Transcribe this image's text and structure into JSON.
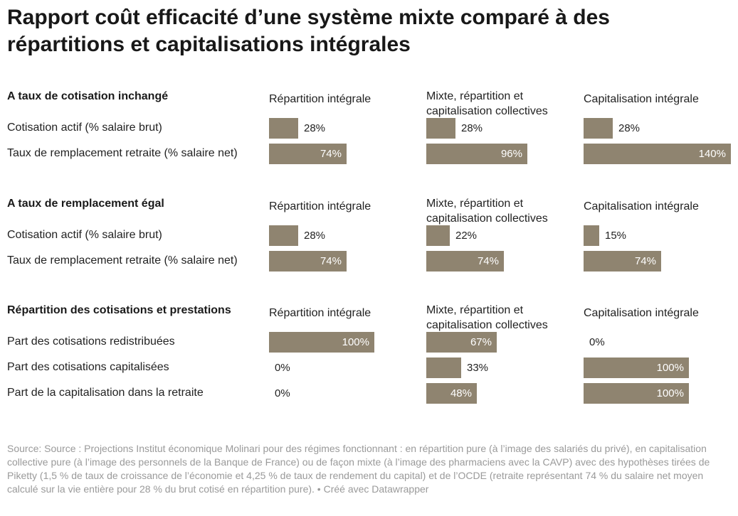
{
  "title": "Rapport coût efficacité d’une système mixte comparé à des répartitions et capitalisations intégrales",
  "accent_color": "#8f8470",
  "chart_data": {
    "type": "bar",
    "max_value": 140,
    "columns": [
      "Répartition intégrale",
      "Mixte, répartition et capitalisation collectives",
      "Capitalisation intégrale"
    ],
    "sections": [
      {
        "title": "A taux de cotisation inchangé",
        "rows": [
          {
            "label": "Cotisation actif (% salaire brut)",
            "values": [
              28,
              28,
              28
            ],
            "labels": [
              "28%",
              "28%",
              "28%"
            ]
          },
          {
            "label": "Taux de remplacement retraite (% salaire net)",
            "values": [
              74,
              96,
              140
            ],
            "labels": [
              "74%",
              "96%",
              "140%"
            ]
          }
        ]
      },
      {
        "title": "A taux de remplacement égal",
        "rows": [
          {
            "label": "Cotisation actif (% salaire brut)",
            "values": [
              28,
              22,
              15
            ],
            "labels": [
              "28%",
              "22%",
              "15%"
            ]
          },
          {
            "label": "Taux de remplacement retraite (% salaire net)",
            "values": [
              74,
              74,
              74
            ],
            "labels": [
              "74%",
              "74%",
              "74%"
            ]
          }
        ]
      },
      {
        "title": "Répartition des cotisations et prestations",
        "rows": [
          {
            "label": "Part des cotisations redistribuées",
            "values": [
              100,
              67,
              0
            ],
            "labels": [
              "100%",
              "67%",
              "0%"
            ]
          },
          {
            "label": "Part des cotisations capitalisées",
            "values": [
              0,
              33,
              100
            ],
            "labels": [
              "0%",
              "33%",
              "100%"
            ]
          },
          {
            "label": "Part de la capitalisation dans la retraite",
            "values": [
              0,
              48,
              100
            ],
            "labels": [
              "0%",
              "48%",
              "100%"
            ]
          }
        ]
      }
    ]
  },
  "source": "Source: Source : Projections Institut économique Molinari pour des régimes fonctionnant : en répartition pure (à l’image des salariés du privé), en capitalisation collective pure (à l’image des personnels de la Banque de France) ou de façon mixte (à l’image des pharmaciens avec la CAVP) avec des hypothèses tirées de Piketty (1,5 % de taux de croissance de l’économie et 4,25 % de taux de rendement du capital) et de l’OCDE (retraite représentant 74 % du salaire net moyen calculé sur la vie entière pour 28 % du brut cotisé en répartition pure). • Créé avec Datawrapper"
}
